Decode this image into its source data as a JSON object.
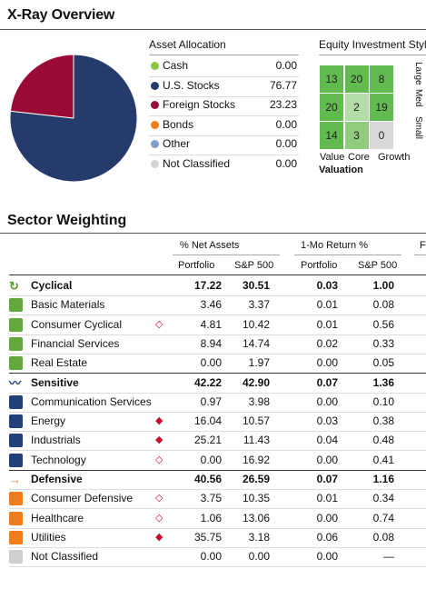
{
  "xray": {
    "title": "X-Ray Overview"
  },
  "asset_allocation": {
    "title": "Asset Allocation",
    "rows": [
      {
        "label": "Cash",
        "value": "0.00",
        "color": "#8dc63f"
      },
      {
        "label": "U.S. Stocks",
        "value": "76.77",
        "color": "#243b6b"
      },
      {
        "label": "Foreign Stocks",
        "value": "23.23",
        "color": "#9b0a36"
      },
      {
        "label": "Bonds",
        "value": "0.00",
        "color": "#f07c1a"
      },
      {
        "label": "Other",
        "value": "0.00",
        "color": "#7f9fc6"
      },
      {
        "label": "Not Classified",
        "value": "0.00",
        "color": "#d4d4d4"
      }
    ]
  },
  "chart_data": {
    "type": "pie",
    "slices": [
      {
        "label": "U.S. Stocks",
        "value": 76.77,
        "color": "#243b6b"
      },
      {
        "label": "Foreign Stocks",
        "value": 23.23,
        "color": "#9b0a36"
      }
    ]
  },
  "equity_style": {
    "title": "Equity Investment Style",
    "grid": [
      [
        {
          "value": "13",
          "color": "#62bb4f"
        },
        {
          "value": "20",
          "color": "#62bb4f"
        },
        {
          "value": "8",
          "color": "#62bb4f"
        }
      ],
      [
        {
          "value": "20",
          "color": "#62bb4f"
        },
        {
          "value": "2",
          "color": "#b3dca6"
        },
        {
          "value": "19",
          "color": "#62bb4f"
        }
      ],
      [
        {
          "value": "14",
          "color": "#62bb4f"
        },
        {
          "value": "3",
          "color": "#8fcc7e"
        },
        {
          "value": "0",
          "color": "#d9d9d9"
        }
      ]
    ],
    "row_labels": [
      "Large",
      "Med",
      "Small"
    ],
    "col_labels": [
      "Value",
      "Core",
      "Growth"
    ],
    "axis_label": "Valuation"
  },
  "sector": {
    "title": "Sector Weighting",
    "group_headers": {
      "net_assets": "% Net Assets",
      "return": "1-Mo Return %",
      "cut": "F"
    },
    "col_headers": {
      "portfolio": "Portfolio",
      "sp500": "S&P 500",
      "ret_portfolio": "Portfolio",
      "ret_sp500": "S&P 500"
    },
    "rows": [
      {
        "name": "Cyclical",
        "bold": true,
        "mark": "",
        "p": "17.22",
        "s": "30.51",
        "rp": "0.03",
        "rs": "1.00",
        "icon": "cyclical-icon",
        "icolor": "#5b9e2d"
      },
      {
        "name": "Basic Materials",
        "bold": false,
        "mark": "",
        "p": "3.46",
        "s": "3.37",
        "rp": "0.01",
        "rs": "0.08",
        "icon": "basic-materials-icon",
        "icolor": "#62a83a"
      },
      {
        "name": "Consumer Cyclical",
        "bold": false,
        "mark": "◇",
        "p": "4.81",
        "s": "10.42",
        "rp": "0.01",
        "rs": "0.56",
        "icon": "consumer-cyclical-icon",
        "icolor": "#62a83a"
      },
      {
        "name": "Financial Services",
        "bold": false,
        "mark": "",
        "p": "8.94",
        "s": "14.74",
        "rp": "0.02",
        "rs": "0.33",
        "icon": "financial-services-icon",
        "icolor": "#62a83a"
      },
      {
        "name": "Real Estate",
        "bold": false,
        "mark": "",
        "p": "0.00",
        "s": "1.97",
        "rp": "0.00",
        "rs": "0.05",
        "icon": "real-estate-icon",
        "icolor": "#62a83a"
      },
      {
        "name": "Sensitive",
        "bold": true,
        "mark": "",
        "p": "42.22",
        "s": "42.90",
        "rp": "0.07",
        "rs": "1.36",
        "icon": "sensitive-icon",
        "icolor": "#23407a"
      },
      {
        "name": "Communication Services",
        "bold": false,
        "mark": "",
        "p": "0.97",
        "s": "3.98",
        "rp": "0.00",
        "rs": "0.10",
        "icon": "communication-services-icon",
        "icolor": "#23407a"
      },
      {
        "name": "Energy",
        "bold": false,
        "mark": "◆",
        "p": "16.04",
        "s": "10.57",
        "rp": "0.03",
        "rs": "0.38",
        "icon": "energy-icon",
        "icolor": "#23407a"
      },
      {
        "name": "Industrials",
        "bold": false,
        "mark": "◆",
        "p": "25.21",
        "s": "11.43",
        "rp": "0.04",
        "rs": "0.48",
        "icon": "industrials-icon",
        "icolor": "#23407a"
      },
      {
        "name": "Technology",
        "bold": false,
        "mark": "◇",
        "p": "0.00",
        "s": "16.92",
        "rp": "0.00",
        "rs": "0.41",
        "icon": "technology-icon",
        "icolor": "#23407a"
      },
      {
        "name": "Defensive",
        "bold": true,
        "mark": "",
        "p": "40.56",
        "s": "26.59",
        "rp": "0.07",
        "rs": "1.16",
        "icon": "defensive-icon",
        "icolor": "#f07c1a"
      },
      {
        "name": "Consumer Defensive",
        "bold": false,
        "mark": "◇",
        "p": "3.75",
        "s": "10.35",
        "rp": "0.01",
        "rs": "0.34",
        "icon": "consumer-defensive-icon",
        "icolor": "#f07c1a"
      },
      {
        "name": "Healthcare",
        "bold": false,
        "mark": "◇",
        "p": "1.06",
        "s": "13.06",
        "rp": "0.00",
        "rs": "0.74",
        "icon": "healthcare-icon",
        "icolor": "#f07c1a"
      },
      {
        "name": "Utilities",
        "bold": false,
        "mark": "◆",
        "p": "35.75",
        "s": "3.18",
        "rp": "0.06",
        "rs": "0.08",
        "icon": "utilities-icon",
        "icolor": "#f07c1a"
      },
      {
        "name": "Not Classified",
        "bold": false,
        "mark": "",
        "p": "0.00",
        "s": "0.00",
        "rp": "0.00",
        "rs": "—",
        "icon": "not-classified-icon",
        "icolor": "#cfcfcf"
      }
    ]
  }
}
